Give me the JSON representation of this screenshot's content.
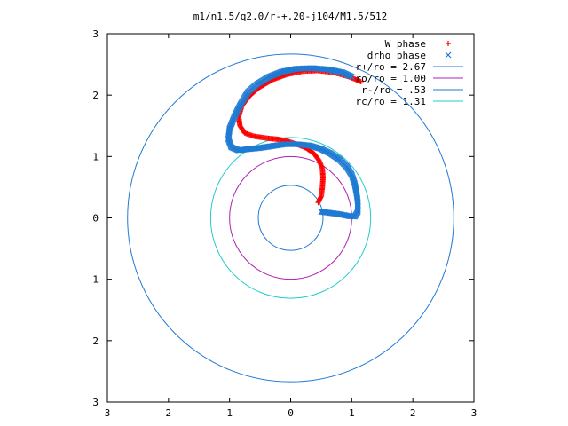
{
  "chart_data": {
    "type": "scatter",
    "title": "m1/n1.5/q2.0/r-+.20-j104/M1.5/512",
    "xlabel": "",
    "ylabel": "",
    "xlim": [
      -3,
      3
    ],
    "ylim": [
      -3,
      3
    ],
    "x_ticks": [
      {
        "value": -3,
        "label": "3"
      },
      {
        "value": -2,
        "label": "2"
      },
      {
        "value": -1,
        "label": "1"
      },
      {
        "value": 0,
        "label": "0"
      },
      {
        "value": 1,
        "label": "1"
      },
      {
        "value": 2,
        "label": "2"
      },
      {
        "value": 3,
        "label": "3"
      }
    ],
    "y_ticks": [
      {
        "value": -3,
        "label": "3"
      },
      {
        "value": -2,
        "label": "2"
      },
      {
        "value": -1,
        "label": "1"
      },
      {
        "value": 0,
        "label": "0"
      },
      {
        "value": 1,
        "label": "1"
      },
      {
        "value": 2,
        "label": "2"
      },
      {
        "value": 3,
        "label": "3"
      }
    ],
    "grid": false,
    "legend_position": "top-right",
    "circles": [
      {
        "name": "r+/ro = 2.67",
        "radius": 2.67,
        "color": "#1f7ad3"
      },
      {
        "name": "ro/ro = 1.00",
        "radius": 1.0,
        "color": "#b020b0"
      },
      {
        "name": "r-/ro = .53",
        "radius": 0.53,
        "color": "#1f7ad3"
      },
      {
        "name": "rc/ro = 1.31",
        "radius": 1.31,
        "color": "#22cccc"
      }
    ],
    "series": [
      {
        "name": "W phase",
        "marker": "+",
        "color": "#ff0000",
        "points": [
          [
            0.45,
            0.25
          ],
          [
            0.5,
            0.35
          ],
          [
            0.52,
            0.5
          ],
          [
            0.53,
            0.65
          ],
          [
            0.52,
            0.8
          ],
          [
            0.47,
            0.93
          ],
          [
            0.38,
            1.05
          ],
          [
            0.25,
            1.14
          ],
          [
            0.1,
            1.2
          ],
          [
            -0.05,
            1.25
          ],
          [
            -0.2,
            1.28
          ],
          [
            -0.4,
            1.3
          ],
          [
            -0.6,
            1.33
          ],
          [
            -0.75,
            1.38
          ],
          [
            -0.83,
            1.5
          ],
          [
            -0.85,
            1.65
          ],
          [
            -0.8,
            1.82
          ],
          [
            -0.68,
            1.98
          ],
          [
            -0.52,
            2.12
          ],
          [
            -0.3,
            2.25
          ],
          [
            -0.05,
            2.34
          ],
          [
            0.2,
            2.39
          ],
          [
            0.45,
            2.4
          ],
          [
            0.7,
            2.37
          ],
          [
            0.95,
            2.3
          ],
          [
            1.15,
            2.22
          ]
        ]
      },
      {
        "name": "drho phase",
        "marker": "x",
        "color": "#1f7ad3",
        "points": [
          [
            0.5,
            0.1
          ],
          [
            0.65,
            0.08
          ],
          [
            0.8,
            0.06
          ],
          [
            0.95,
            0.03
          ],
          [
            1.05,
            0.02
          ],
          [
            1.1,
            0.1
          ],
          [
            1.1,
            0.25
          ],
          [
            1.08,
            0.4
          ],
          [
            1.05,
            0.55
          ],
          [
            1.0,
            0.7
          ],
          [
            0.92,
            0.83
          ],
          [
            0.8,
            0.95
          ],
          [
            0.65,
            1.05
          ],
          [
            0.48,
            1.13
          ],
          [
            0.3,
            1.18
          ],
          [
            0.1,
            1.2
          ],
          [
            -0.1,
            1.2
          ],
          [
            -0.3,
            1.17
          ],
          [
            -0.5,
            1.14
          ],
          [
            -0.7,
            1.12
          ],
          [
            -0.85,
            1.1
          ],
          [
            -0.97,
            1.15
          ],
          [
            -1.02,
            1.28
          ],
          [
            -1.0,
            1.45
          ],
          [
            -0.92,
            1.65
          ],
          [
            -0.82,
            1.85
          ],
          [
            -0.7,
            2.05
          ],
          [
            -0.55,
            2.18
          ],
          [
            -0.35,
            2.3
          ],
          [
            -0.15,
            2.38
          ],
          [
            0.1,
            2.43
          ],
          [
            0.35,
            2.44
          ],
          [
            0.6,
            2.42
          ],
          [
            0.85,
            2.37
          ],
          [
            1.0,
            2.3
          ]
        ]
      }
    ]
  }
}
